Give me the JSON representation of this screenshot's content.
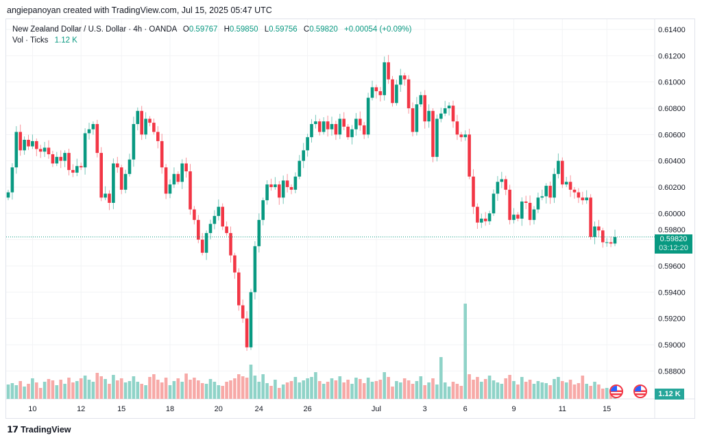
{
  "credit": "angiepanoyan created with TradingView.com, Jul 15, 2025 05:47 UTC",
  "legend": {
    "symbol": "New Zealand Dollar / U.S. Dollar · 4h · OANDA",
    "open_label": "O",
    "open": "0.59767",
    "high_label": "H",
    "high": "0.59850",
    "low_label": "L",
    "low": "0.59756",
    "close_label": "C",
    "close": "0.59820",
    "change": "+0.00054 (+0.09%)",
    "volume_label": "Vol · Ticks",
    "volume": "1.12 K"
  },
  "price_tag": {
    "price": "0.59820",
    "countdown": "03:12:20"
  },
  "volume_tag": "1.12 K",
  "logo": "TradingView",
  "colors": {
    "up": "#089981",
    "down": "#f23645",
    "up_vol": "#8fd3c8",
    "down_vol": "#f7a9a7"
  },
  "chart_data": {
    "type": "candlestick",
    "title": "New Zealand Dollar / U.S. Dollar · 4h · OANDA",
    "ylim": [
      0.587,
      0.615
    ],
    "y_ticks": [
      "0.61400",
      "0.61200",
      "0.61000",
      "0.60800",
      "0.60600",
      "0.60400",
      "0.60200",
      "0.60000",
      "0.59800",
      "0.59600",
      "0.59400",
      "0.59200",
      "0.59000",
      "0.58800"
    ],
    "x_ticks": [
      {
        "label": "10",
        "index": 6
      },
      {
        "label": "12",
        "index": 18
      },
      {
        "label": "15",
        "index": 28
      },
      {
        "label": "18",
        "index": 40
      },
      {
        "label": "20",
        "index": 52
      },
      {
        "label": "24",
        "index": 62
      },
      {
        "label": "26",
        "index": 74
      },
      {
        "label": "Jul",
        "index": 91
      },
      {
        "label": "3",
        "index": 103
      },
      {
        "label": "6",
        "index": 113
      },
      {
        "label": "9",
        "index": 125
      },
      {
        "label": "11",
        "index": 137
      },
      {
        "label": "15",
        "index": 148
      }
    ],
    "first_open": 0.6012,
    "closes": [
      0.6016,
      0.6035,
      0.6062,
      0.6048,
      0.6056,
      0.6051,
      0.6055,
      0.6049,
      0.6047,
      0.605,
      0.6045,
      0.6038,
      0.6043,
      0.604,
      0.6046,
      0.6033,
      0.6031,
      0.6036,
      0.6035,
      0.6061,
      0.6064,
      0.6068,
      0.6046,
      0.6012,
      0.6015,
      0.6008,
      0.6038,
      0.6035,
      0.6018,
      0.603,
      0.6041,
      0.6068,
      0.6078,
      0.606,
      0.6072,
      0.6069,
      0.6062,
      0.6055,
      0.6035,
      0.6015,
      0.6022,
      0.603,
      0.6024,
      0.6038,
      0.6032,
      0.6003,
      0.5995,
      0.598,
      0.597,
      0.5985,
      0.5992,
      0.5998,
      0.6005,
      0.599,
      0.5985,
      0.5968,
      0.5955,
      0.593,
      0.592,
      0.5898,
      0.594,
      0.5975,
      0.5995,
      0.601,
      0.6022,
      0.602,
      0.6022,
      0.6012,
      0.6025,
      0.602,
      0.6018,
      0.6028,
      0.604,
      0.6048,
      0.6058,
      0.6068,
      0.607,
      0.6062,
      0.607,
      0.6064,
      0.6068,
      0.606,
      0.6072,
      0.6066,
      0.6058,
      0.6064,
      0.6072,
      0.6067,
      0.606,
      0.6088,
      0.6096,
      0.6093,
      0.609,
      0.6115,
      0.6102,
      0.6084,
      0.6098,
      0.6105,
      0.6102,
      0.608,
      0.6062,
      0.6083,
      0.609,
      0.607,
      0.6078,
      0.6043,
      0.6072,
      0.6076,
      0.608,
      0.6082,
      0.607,
      0.606,
      0.6058,
      0.606,
      0.6028,
      0.6005,
      0.5993,
      0.5996,
      0.5994,
      0.6,
      0.6015,
      0.6024,
      0.6026,
      0.6018,
      0.5995,
      0.5999,
      0.5996,
      0.6009,
      0.6008,
      0.5995,
      0.6003,
      0.6012,
      0.6013,
      0.6021,
      0.6012,
      0.603,
      0.604,
      0.6022,
      0.6024,
      0.6018,
      0.6016,
      0.6012,
      0.601,
      0.6012,
      0.5982,
      0.599,
      0.5987,
      0.5978,
      0.5978,
      0.5977,
      0.5982
    ],
    "volume_unit": "K",
    "volumes": [
      2.1,
      2.3,
      2.0,
      2.6,
      1.8,
      2.2,
      3.0,
      2.4,
      1.6,
      2.5,
      2.9,
      2.7,
      2.0,
      2.8,
      2.2,
      3.1,
      2.4,
      2.6,
      3.0,
      3.4,
      2.8,
      2.5,
      3.8,
      3.3,
      2.9,
      2.2,
      3.5,
      2.7,
      3.0,
      2.4,
      2.6,
      3.3,
      2.5,
      2.2,
      2.0,
      3.2,
      3.6,
      2.8,
      2.4,
      3.1,
      2.0,
      2.6,
      3.0,
      2.5,
      3.7,
      2.8,
      3.1,
      2.7,
      2.3,
      2.2,
      2.9,
      2.5,
      2.0,
      1.9,
      2.5,
      2.7,
      3.0,
      3.6,
      3.3,
      3.1,
      5.0,
      3.4,
      2.5,
      3.6,
      2.3,
      1.9,
      2.8,
      1.6,
      2.1,
      2.4,
      2.6,
      3.2,
      2.4,
      2.7,
      3.0,
      3.2,
      3.9,
      2.6,
      2.2,
      2.5,
      3.0,
      2.7,
      3.3,
      2.4,
      2.8,
      2.2,
      3.1,
      2.9,
      2.3,
      3.1,
      2.5,
      2.6,
      2.8,
      3.9,
      3.2,
      1.8,
      2.6,
      2.4,
      3.0,
      2.7,
      2.2,
      2.6,
      3.3,
      2.0,
      2.4,
      3.0,
      2.1,
      6.1,
      2.4,
      1.8,
      2.5,
      2.2,
      1.9,
      13.9,
      3.6,
      2.8,
      3.2,
      2.5,
      2.9,
      3.4,
      2.7,
      2.4,
      2.2,
      3.0,
      3.5,
      2.6,
      2.1,
      3.2,
      2.5,
      2.8,
      2.2,
      2.6,
      2.4,
      2.3,
      2.0,
      2.9,
      3.2,
      2.6,
      2.4,
      2.8,
      2.1,
      2.3,
      3.4,
      2.2,
      1.9,
      2.5,
      2.1,
      1.5,
      1.6,
      1.4,
      1.12
    ]
  }
}
